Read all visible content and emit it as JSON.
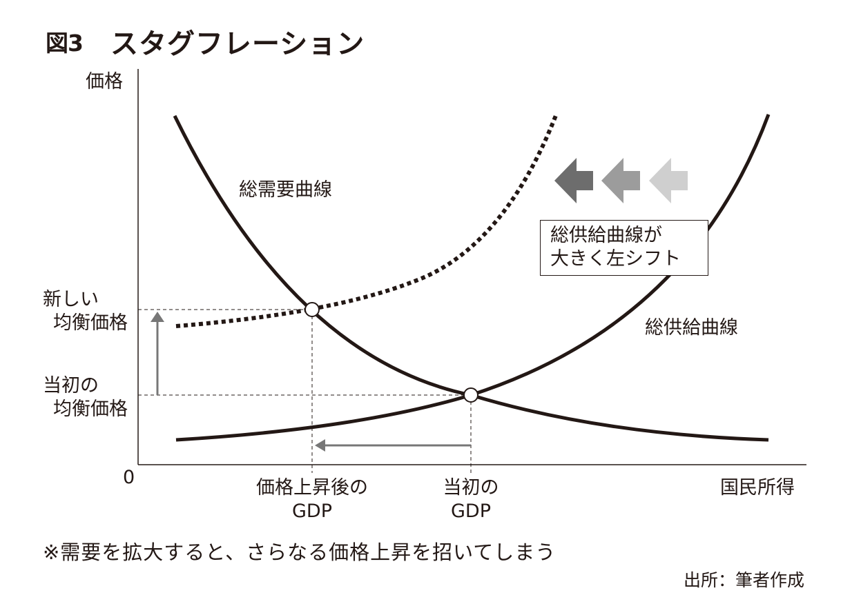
{
  "figure": {
    "number": "図3",
    "title": "スタグフレーション"
  },
  "axes": {
    "y_label": "価格",
    "x_label": "国民所得",
    "origin": "0"
  },
  "price_levels": {
    "new_equilibrium": [
      "新しい",
      "均衡価格"
    ],
    "initial_equilibrium": [
      "当初の",
      "均衡価格"
    ]
  },
  "gdp_levels": {
    "after_price_rise": [
      "価格上昇後の",
      "GDP"
    ],
    "initial": [
      "当初の",
      "GDP"
    ]
  },
  "curves": {
    "aggregate_demand": "総需要曲線",
    "aggregate_supply": "総供給曲線"
  },
  "callout": [
    "総供給曲線が",
    "大きく左シフト"
  ],
  "shift_arrow_colors": [
    "#6d6d6d",
    "#9c9c9c",
    "#cfcfcf"
  ],
  "note": "※需要を拡大すると、さらなる価格上昇を招いてしまう",
  "source": "出所：筆者作成",
  "colors": {
    "curve": "#231815",
    "guide_arrow": "#777777"
  }
}
